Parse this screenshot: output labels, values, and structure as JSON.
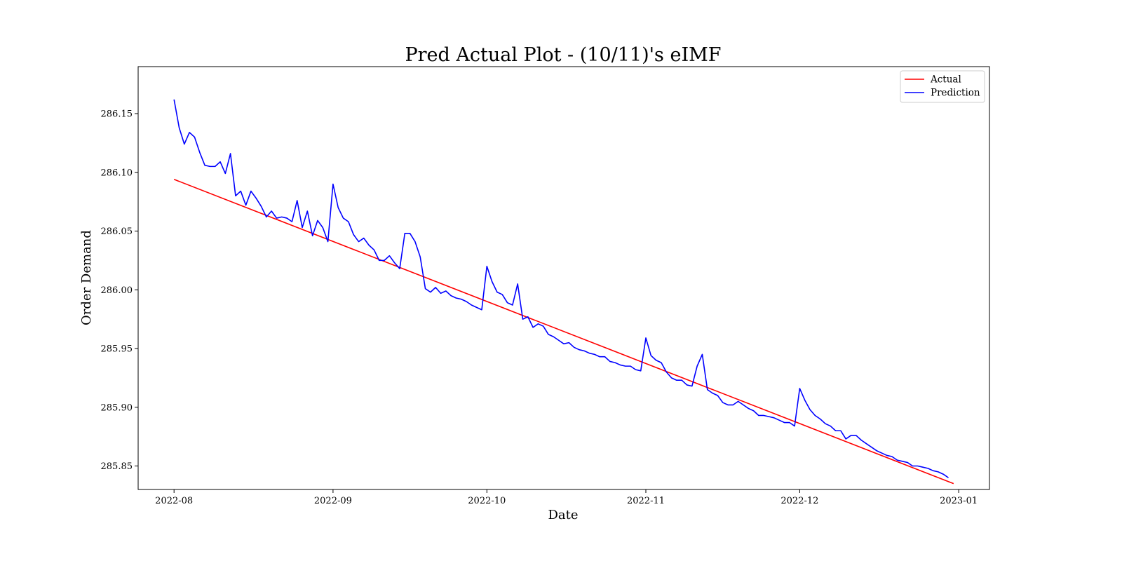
{
  "chart_data": {
    "type": "line",
    "title": "Pred Actual Plot - (10/11)'s eIMF",
    "xlabel": "Date",
    "ylabel": "Order Demand",
    "x_ticks": [
      "2022-08",
      "2022-09",
      "2022-10",
      "2022-11",
      "2022-12",
      "2023-01"
    ],
    "y_ticks": [
      "285.85",
      "285.90",
      "285.95",
      "286.00",
      "286.05",
      "286.10",
      "286.15"
    ],
    "xlim": [
      "2022-07-25",
      "2023-01-07"
    ],
    "ylim": [
      285.83,
      286.19
    ],
    "grid": false,
    "legend_position": "top-right",
    "series": [
      {
        "name": "Actual",
        "color": "#ff0000",
        "points": [
          [
            "2022-08-01",
            286.094
          ],
          [
            "2022-12-31",
            285.835
          ]
        ]
      },
      {
        "name": "Prediction",
        "color": "#0000ff",
        "points": [
          [
            "2022-08-01",
            286.162
          ],
          [
            "2022-08-02",
            286.138
          ],
          [
            "2022-08-03",
            286.124
          ],
          [
            "2022-08-04",
            286.134
          ],
          [
            "2022-08-05",
            286.13
          ],
          [
            "2022-08-06",
            286.117
          ],
          [
            "2022-08-07",
            286.106
          ],
          [
            "2022-08-08",
            286.105
          ],
          [
            "2022-08-09",
            286.105
          ],
          [
            "2022-08-10",
            286.109
          ],
          [
            "2022-08-11",
            286.099
          ],
          [
            "2022-08-12",
            286.116
          ],
          [
            "2022-08-13",
            286.08
          ],
          [
            "2022-08-14",
            286.084
          ],
          [
            "2022-08-15",
            286.072
          ],
          [
            "2022-08-16",
            286.084
          ],
          [
            "2022-08-17",
            286.078
          ],
          [
            "2022-08-18",
            286.071
          ],
          [
            "2022-08-19",
            286.062
          ],
          [
            "2022-08-20",
            286.067
          ],
          [
            "2022-08-21",
            286.061
          ],
          [
            "2022-08-22",
            286.062
          ],
          [
            "2022-08-23",
            286.061
          ],
          [
            "2022-08-24",
            286.058
          ],
          [
            "2022-08-25",
            286.076
          ],
          [
            "2022-08-26",
            286.053
          ],
          [
            "2022-08-27",
            286.067
          ],
          [
            "2022-08-28",
            286.046
          ],
          [
            "2022-08-29",
            286.059
          ],
          [
            "2022-08-30",
            286.053
          ],
          [
            "2022-08-31",
            286.041
          ],
          [
            "2022-09-01",
            286.09
          ],
          [
            "2022-09-02",
            286.07
          ],
          [
            "2022-09-03",
            286.061
          ],
          [
            "2022-09-04",
            286.058
          ],
          [
            "2022-09-05",
            286.047
          ],
          [
            "2022-09-06",
            286.041
          ],
          [
            "2022-09-07",
            286.044
          ],
          [
            "2022-09-08",
            286.038
          ],
          [
            "2022-09-09",
            286.034
          ],
          [
            "2022-09-10",
            286.025
          ],
          [
            "2022-09-11",
            286.025
          ],
          [
            "2022-09-12",
            286.029
          ],
          [
            "2022-09-13",
            286.023
          ],
          [
            "2022-09-14",
            286.018
          ],
          [
            "2022-09-15",
            286.048
          ],
          [
            "2022-09-16",
            286.048
          ],
          [
            "2022-09-17",
            286.041
          ],
          [
            "2022-09-18",
            286.028
          ],
          [
            "2022-09-19",
            286.001
          ],
          [
            "2022-09-20",
            285.998
          ],
          [
            "2022-09-21",
            286.002
          ],
          [
            "2022-09-22",
            285.997
          ],
          [
            "2022-09-23",
            285.999
          ],
          [
            "2022-09-24",
            285.995
          ],
          [
            "2022-09-25",
            285.993
          ],
          [
            "2022-09-26",
            285.992
          ],
          [
            "2022-09-27",
            285.99
          ],
          [
            "2022-09-28",
            285.987
          ],
          [
            "2022-09-29",
            285.985
          ],
          [
            "2022-09-30",
            285.983
          ],
          [
            "2022-10-01",
            286.02
          ],
          [
            "2022-10-02",
            286.007
          ],
          [
            "2022-10-03",
            285.998
          ],
          [
            "2022-10-04",
            285.996
          ],
          [
            "2022-10-05",
            285.989
          ],
          [
            "2022-10-06",
            285.987
          ],
          [
            "2022-10-07",
            286.005
          ],
          [
            "2022-10-08",
            285.975
          ],
          [
            "2022-10-09",
            285.977
          ],
          [
            "2022-10-10",
            285.968
          ],
          [
            "2022-10-11",
            285.971
          ],
          [
            "2022-10-12",
            285.969
          ],
          [
            "2022-10-13",
            285.962
          ],
          [
            "2022-10-14",
            285.96
          ],
          [
            "2022-10-15",
            285.957
          ],
          [
            "2022-10-16",
            285.954
          ],
          [
            "2022-10-17",
            285.955
          ],
          [
            "2022-10-18",
            285.951
          ],
          [
            "2022-10-19",
            285.949
          ],
          [
            "2022-10-20",
            285.948
          ],
          [
            "2022-10-21",
            285.946
          ],
          [
            "2022-10-22",
            285.945
          ],
          [
            "2022-10-23",
            285.943
          ],
          [
            "2022-10-24",
            285.943
          ],
          [
            "2022-10-25",
            285.939
          ],
          [
            "2022-10-26",
            285.938
          ],
          [
            "2022-10-27",
            285.936
          ],
          [
            "2022-10-28",
            285.935
          ],
          [
            "2022-10-29",
            285.935
          ],
          [
            "2022-10-30",
            285.932
          ],
          [
            "2022-10-31",
            285.931
          ],
          [
            "2022-11-01",
            285.959
          ],
          [
            "2022-11-02",
            285.944
          ],
          [
            "2022-11-03",
            285.94
          ],
          [
            "2022-11-04",
            285.938
          ],
          [
            "2022-11-05",
            285.93
          ],
          [
            "2022-11-06",
            285.925
          ],
          [
            "2022-11-07",
            285.923
          ],
          [
            "2022-11-08",
            285.923
          ],
          [
            "2022-11-09",
            285.919
          ],
          [
            "2022-11-10",
            285.918
          ],
          [
            "2022-11-11",
            285.935
          ],
          [
            "2022-11-12",
            285.945
          ],
          [
            "2022-11-13",
            285.915
          ],
          [
            "2022-11-14",
            285.912
          ],
          [
            "2022-11-15",
            285.91
          ],
          [
            "2022-11-16",
            285.904
          ],
          [
            "2022-11-17",
            285.902
          ],
          [
            "2022-11-18",
            285.902
          ],
          [
            "2022-11-19",
            285.905
          ],
          [
            "2022-11-20",
            285.902
          ],
          [
            "2022-11-21",
            285.899
          ],
          [
            "2022-11-22",
            285.897
          ],
          [
            "2022-11-23",
            285.893
          ],
          [
            "2022-11-24",
            285.893
          ],
          [
            "2022-11-25",
            285.892
          ],
          [
            "2022-11-26",
            285.891
          ],
          [
            "2022-11-27",
            285.889
          ],
          [
            "2022-11-28",
            285.887
          ],
          [
            "2022-11-29",
            285.887
          ],
          [
            "2022-11-30",
            285.884
          ],
          [
            "2022-12-01",
            285.916
          ],
          [
            "2022-12-02",
            285.906
          ],
          [
            "2022-12-03",
            285.898
          ],
          [
            "2022-12-04",
            285.893
          ],
          [
            "2022-12-05",
            285.89
          ],
          [
            "2022-12-06",
            285.886
          ],
          [
            "2022-12-07",
            285.884
          ],
          [
            "2022-12-08",
            285.88
          ],
          [
            "2022-12-09",
            285.88
          ],
          [
            "2022-12-10",
            285.873
          ],
          [
            "2022-12-11",
            285.876
          ],
          [
            "2022-12-12",
            285.876
          ],
          [
            "2022-12-13",
            285.872
          ],
          [
            "2022-12-14",
            285.869
          ],
          [
            "2022-12-15",
            285.866
          ],
          [
            "2022-12-16",
            285.863
          ],
          [
            "2022-12-17",
            285.861
          ],
          [
            "2022-12-18",
            285.859
          ],
          [
            "2022-12-19",
            285.858
          ],
          [
            "2022-12-20",
            285.855
          ],
          [
            "2022-12-21",
            285.854
          ],
          [
            "2022-12-22",
            285.853
          ],
          [
            "2022-12-23",
            285.85
          ],
          [
            "2022-12-24",
            285.85
          ],
          [
            "2022-12-25",
            285.849
          ],
          [
            "2022-12-26",
            285.848
          ],
          [
            "2022-12-27",
            285.846
          ],
          [
            "2022-12-28",
            285.845
          ],
          [
            "2022-12-29",
            285.843
          ],
          [
            "2022-12-30",
            285.84
          ]
        ]
      }
    ]
  }
}
